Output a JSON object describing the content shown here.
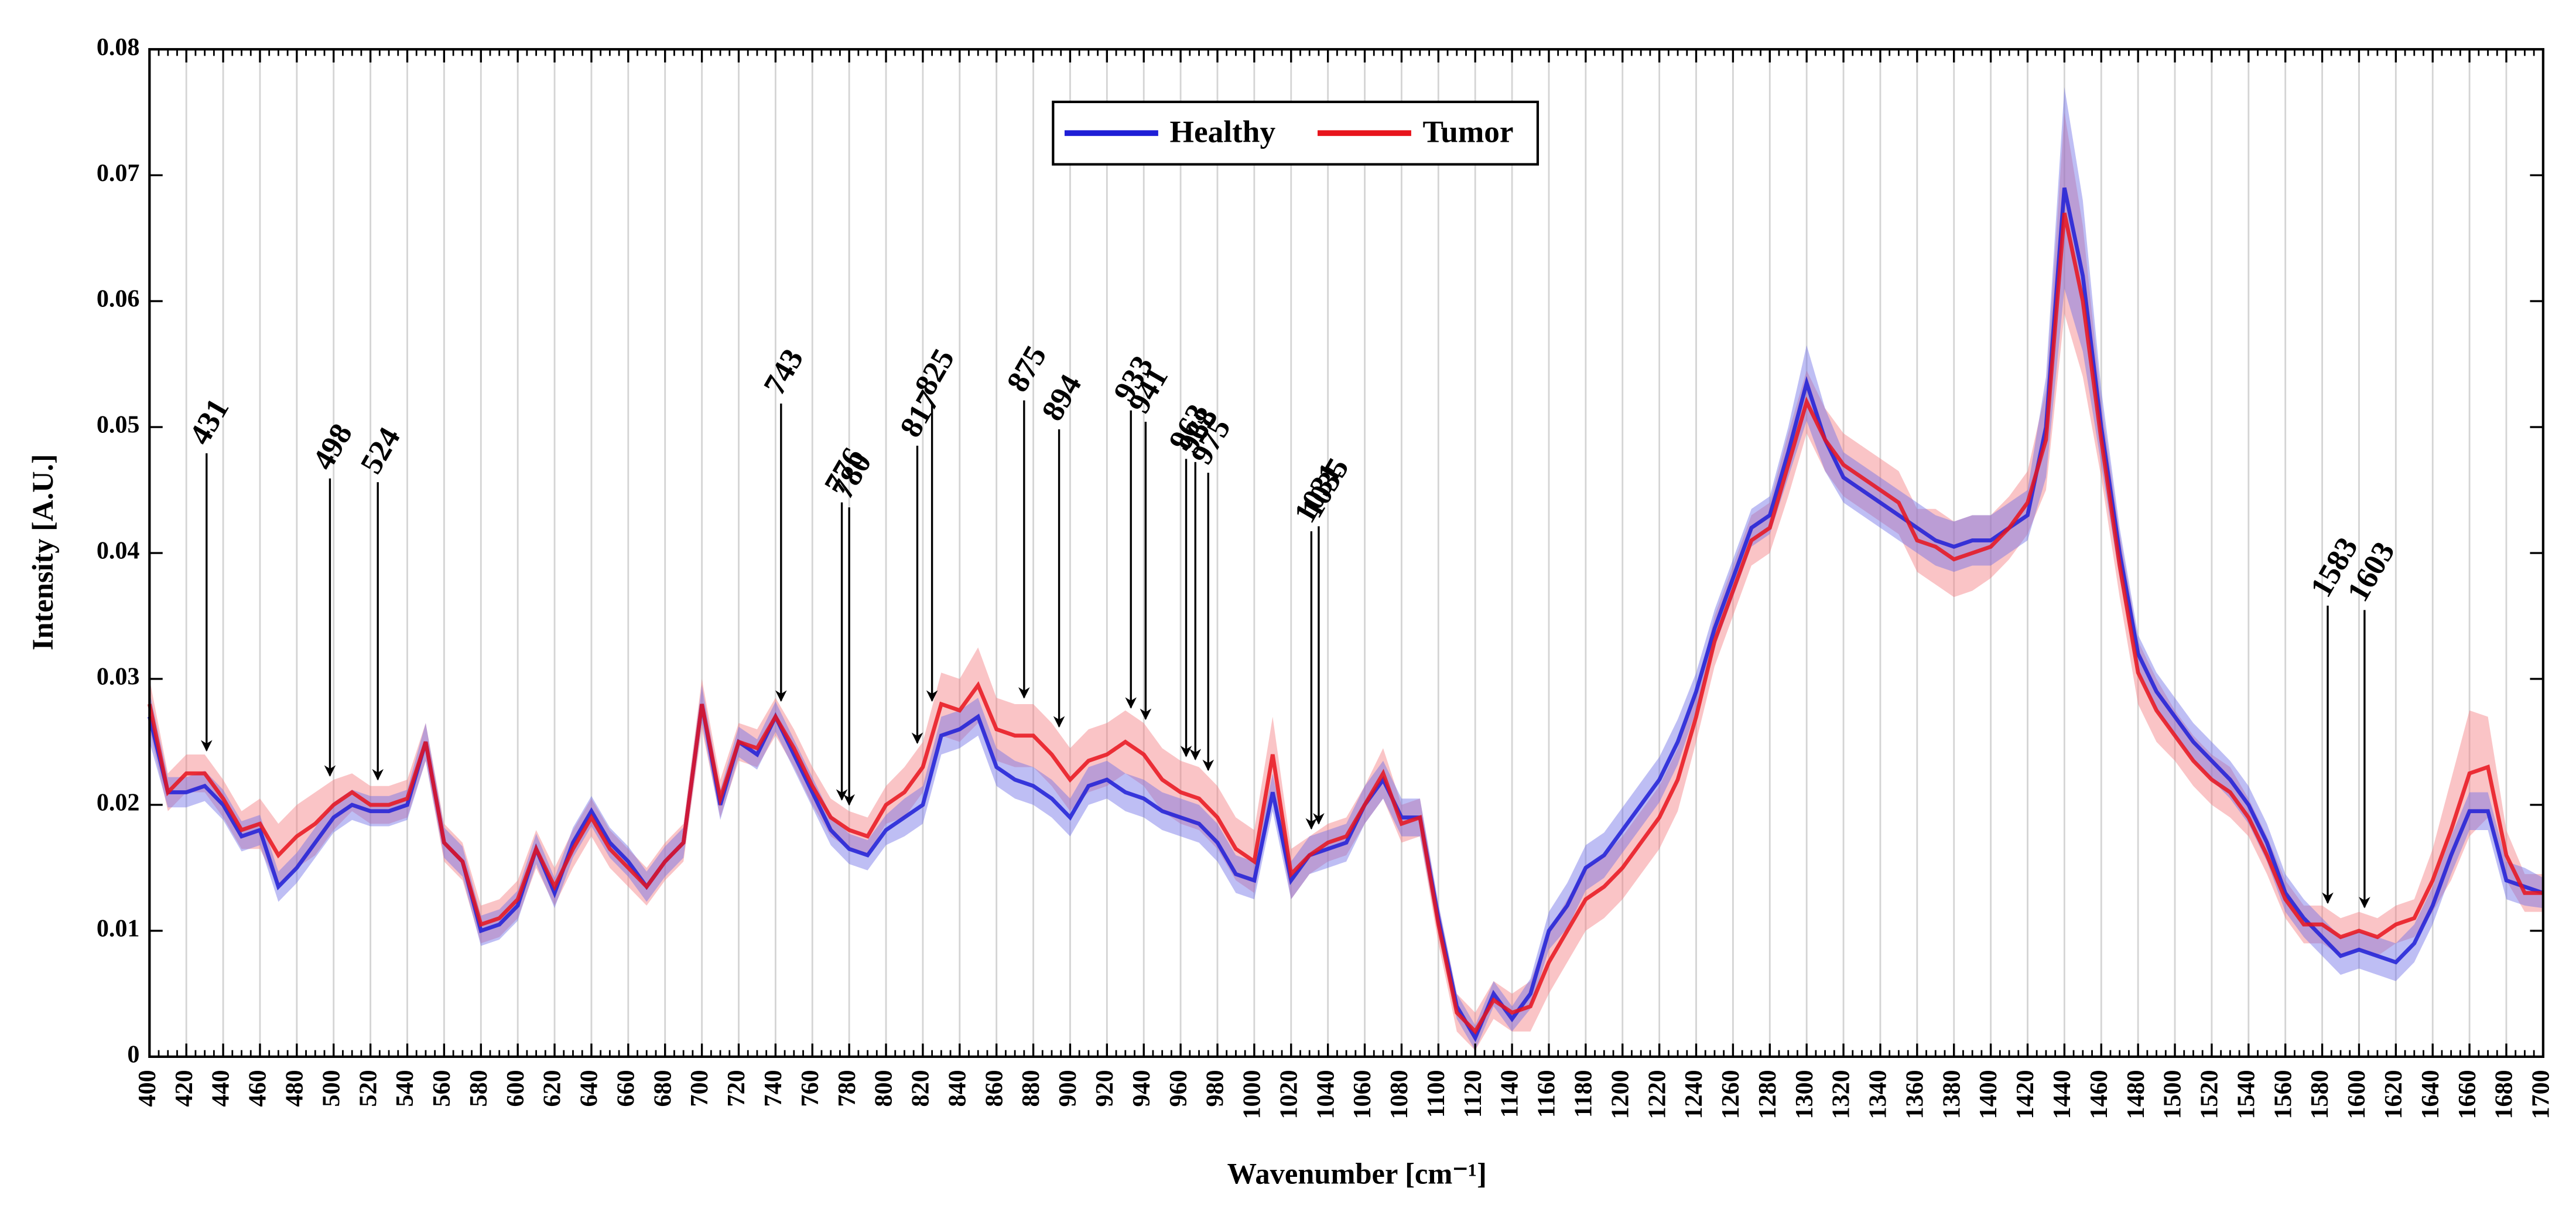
{
  "chart_data": {
    "type": "line",
    "xlabel": "Wavenumber [cm⁻¹]",
    "ylabel": "Intensity [A.U.]",
    "xlim": [
      400,
      1700
    ],
    "ylim": [
      0,
      0.08
    ],
    "xticks": [
      400,
      420,
      440,
      460,
      480,
      500,
      520,
      540,
      560,
      580,
      600,
      620,
      640,
      660,
      680,
      700,
      720,
      740,
      760,
      780,
      800,
      820,
      840,
      860,
      880,
      900,
      920,
      940,
      960,
      980,
      1000,
      1020,
      1040,
      1060,
      1080,
      1100,
      1120,
      1140,
      1160,
      1180,
      1200,
      1220,
      1240,
      1260,
      1280,
      1300,
      1320,
      1340,
      1360,
      1380,
      1400,
      1420,
      1440,
      1460,
      1480,
      1500,
      1520,
      1540,
      1560,
      1580,
      1600,
      1620,
      1640,
      1660,
      1680,
      1700
    ],
    "yticks": [
      0,
      0.01,
      0.02,
      0.03,
      0.04,
      0.05,
      0.06,
      0.07,
      0.08
    ],
    "grid": true,
    "legend": "top",
    "x": [
      400,
      410,
      420,
      430,
      440,
      450,
      460,
      470,
      480,
      490,
      500,
      510,
      520,
      530,
      540,
      550,
      560,
      570,
      580,
      590,
      600,
      610,
      620,
      630,
      640,
      650,
      660,
      670,
      680,
      690,
      700,
      710,
      720,
      730,
      740,
      750,
      760,
      770,
      780,
      790,
      800,
      810,
      820,
      830,
      840,
      850,
      860,
      870,
      880,
      890,
      900,
      910,
      920,
      930,
      940,
      950,
      960,
      970,
      980,
      990,
      1000,
      1010,
      1020,
      1030,
      1040,
      1050,
      1060,
      1070,
      1080,
      1090,
      1100,
      1110,
      1120,
      1130,
      1140,
      1150,
      1160,
      1170,
      1180,
      1190,
      1200,
      1210,
      1220,
      1230,
      1240,
      1250,
      1260,
      1270,
      1280,
      1290,
      1300,
      1310,
      1320,
      1330,
      1340,
      1350,
      1360,
      1370,
      1380,
      1390,
      1400,
      1410,
      1420,
      1430,
      1440,
      1450,
      1460,
      1470,
      1480,
      1490,
      1500,
      1510,
      1520,
      1530,
      1540,
      1550,
      1560,
      1570,
      1580,
      1590,
      1600,
      1610,
      1620,
      1630,
      1640,
      1650,
      1660,
      1670,
      1680,
      1690,
      1700
    ],
    "series": [
      {
        "name": "Healthy",
        "color": "#1f1fd6",
        "band_color": "#6f6fe6",
        "values": [
          0.027,
          0.021,
          0.021,
          0.0215,
          0.02,
          0.0175,
          0.018,
          0.0135,
          0.015,
          0.017,
          0.019,
          0.02,
          0.0195,
          0.0195,
          0.02,
          0.025,
          0.017,
          0.0155,
          0.01,
          0.0105,
          0.012,
          0.0165,
          0.013,
          0.017,
          0.0195,
          0.017,
          0.0155,
          0.0135,
          0.0155,
          0.017,
          0.028,
          0.02,
          0.025,
          0.024,
          0.027,
          0.024,
          0.021,
          0.018,
          0.0165,
          0.016,
          0.018,
          0.019,
          0.02,
          0.0255,
          0.026,
          0.027,
          0.023,
          0.022,
          0.0215,
          0.0205,
          0.019,
          0.0215,
          0.022,
          0.021,
          0.0205,
          0.0195,
          0.019,
          0.0185,
          0.017,
          0.0145,
          0.014,
          0.021,
          0.014,
          0.016,
          0.0165,
          0.017,
          0.02,
          0.022,
          0.019,
          0.019,
          0.011,
          0.004,
          0.0015,
          0.005,
          0.003,
          0.005,
          0.01,
          0.012,
          0.015,
          0.016,
          0.018,
          0.02,
          0.022,
          0.025,
          0.029,
          0.034,
          0.038,
          0.042,
          0.043,
          0.048,
          0.0535,
          0.049,
          0.046,
          0.045,
          0.044,
          0.043,
          0.042,
          0.041,
          0.0405,
          0.041,
          0.041,
          0.042,
          0.043,
          0.05,
          0.069,
          0.062,
          0.05,
          0.04,
          0.032,
          0.029,
          0.027,
          0.025,
          0.0235,
          0.022,
          0.02,
          0.017,
          0.013,
          0.011,
          0.0095,
          0.008,
          0.0085,
          0.008,
          0.0075,
          0.009,
          0.012,
          0.016,
          0.0195,
          0.0195,
          0.014,
          0.0135,
          0.013
        ],
        "spread": [
          0.002,
          0.0012,
          0.0012,
          0.0012,
          0.0012,
          0.0012,
          0.0012,
          0.0012,
          0.0012,
          0.0012,
          0.0012,
          0.0012,
          0.0012,
          0.0012,
          0.0012,
          0.0015,
          0.0012,
          0.0012,
          0.0012,
          0.0012,
          0.0012,
          0.0012,
          0.0012,
          0.0012,
          0.0012,
          0.0012,
          0.0012,
          0.0012,
          0.0012,
          0.0012,
          0.0015,
          0.0012,
          0.0012,
          0.0012,
          0.0012,
          0.0012,
          0.0012,
          0.0012,
          0.0012,
          0.0012,
          0.0012,
          0.0015,
          0.0015,
          0.0015,
          0.0015,
          0.0015,
          0.0015,
          0.0015,
          0.0015,
          0.0015,
          0.0015,
          0.0015,
          0.0015,
          0.0015,
          0.0015,
          0.0015,
          0.0015,
          0.0015,
          0.0015,
          0.0015,
          0.0015,
          0.0015,
          0.0015,
          0.0015,
          0.0015,
          0.0015,
          0.0015,
          0.0015,
          0.0015,
          0.0015,
          0.0012,
          0.001,
          0.001,
          0.001,
          0.001,
          0.0012,
          0.0015,
          0.0018,
          0.0018,
          0.0018,
          0.0018,
          0.0018,
          0.0018,
          0.0018,
          0.0015,
          0.0015,
          0.0015,
          0.0015,
          0.0015,
          0.002,
          0.003,
          0.0025,
          0.002,
          0.002,
          0.002,
          0.002,
          0.002,
          0.002,
          0.002,
          0.002,
          0.002,
          0.002,
          0.002,
          0.004,
          0.008,
          0.006,
          0.003,
          0.002,
          0.0015,
          0.0015,
          0.0015,
          0.0015,
          0.0015,
          0.0015,
          0.0015,
          0.0015,
          0.0015,
          0.0015,
          0.0015,
          0.0015,
          0.0015,
          0.0015,
          0.0015,
          0.0015,
          0.0015,
          0.0015,
          0.0015,
          0.0015,
          0.0015,
          0.0015,
          0.0012
        ]
      },
      {
        "name": "Tumor",
        "color": "#e8141c",
        "band_color": "#f47c80",
        "values": [
          0.028,
          0.021,
          0.0225,
          0.0225,
          0.0205,
          0.018,
          0.0185,
          0.016,
          0.0175,
          0.0185,
          0.02,
          0.021,
          0.02,
          0.02,
          0.0205,
          0.025,
          0.017,
          0.0155,
          0.0105,
          0.011,
          0.0125,
          0.0165,
          0.0135,
          0.0165,
          0.019,
          0.0165,
          0.015,
          0.0135,
          0.0155,
          0.017,
          0.028,
          0.0205,
          0.025,
          0.0245,
          0.027,
          0.0245,
          0.0215,
          0.019,
          0.018,
          0.0175,
          0.02,
          0.021,
          0.023,
          0.028,
          0.0275,
          0.0295,
          0.026,
          0.0255,
          0.0255,
          0.024,
          0.022,
          0.0235,
          0.024,
          0.025,
          0.024,
          0.022,
          0.021,
          0.0205,
          0.019,
          0.0165,
          0.0155,
          0.024,
          0.0145,
          0.016,
          0.017,
          0.0175,
          0.02,
          0.0225,
          0.0185,
          0.019,
          0.0105,
          0.0035,
          0.002,
          0.0045,
          0.0035,
          0.004,
          0.0075,
          0.01,
          0.0125,
          0.0135,
          0.015,
          0.017,
          0.019,
          0.022,
          0.027,
          0.033,
          0.037,
          0.041,
          0.042,
          0.047,
          0.052,
          0.049,
          0.047,
          0.046,
          0.045,
          0.044,
          0.041,
          0.0405,
          0.0395,
          0.04,
          0.0405,
          0.042,
          0.044,
          0.049,
          0.067,
          0.06,
          0.049,
          0.039,
          0.0305,
          0.0275,
          0.0255,
          0.0235,
          0.022,
          0.021,
          0.019,
          0.016,
          0.0125,
          0.0105,
          0.0105,
          0.0095,
          0.01,
          0.0095,
          0.0105,
          0.011,
          0.014,
          0.018,
          0.0225,
          0.023,
          0.016,
          0.013,
          0.013
        ],
        "spread": [
          0.002,
          0.0015,
          0.0015,
          0.0015,
          0.0015,
          0.0015,
          0.002,
          0.0025,
          0.0025,
          0.0025,
          0.002,
          0.0015,
          0.0015,
          0.0015,
          0.0015,
          0.0015,
          0.0015,
          0.0015,
          0.0015,
          0.0015,
          0.0015,
          0.0015,
          0.0015,
          0.0015,
          0.0015,
          0.0015,
          0.0015,
          0.0015,
          0.0015,
          0.0015,
          0.002,
          0.0015,
          0.0015,
          0.0015,
          0.0015,
          0.0015,
          0.0015,
          0.0015,
          0.0015,
          0.0015,
          0.0015,
          0.002,
          0.002,
          0.0025,
          0.0025,
          0.003,
          0.0025,
          0.0025,
          0.0025,
          0.0025,
          0.0025,
          0.0025,
          0.0025,
          0.0025,
          0.0025,
          0.0025,
          0.0025,
          0.0025,
          0.0025,
          0.0025,
          0.0025,
          0.003,
          0.002,
          0.0015,
          0.0015,
          0.0015,
          0.0015,
          0.002,
          0.0015,
          0.0015,
          0.0015,
          0.0015,
          0.0015,
          0.0015,
          0.0015,
          0.002,
          0.0025,
          0.0025,
          0.0025,
          0.0025,
          0.0025,
          0.0025,
          0.0025,
          0.0025,
          0.002,
          0.002,
          0.002,
          0.002,
          0.002,
          0.0025,
          0.0025,
          0.0025,
          0.0025,
          0.0025,
          0.0025,
          0.0025,
          0.0025,
          0.003,
          0.003,
          0.003,
          0.0025,
          0.0025,
          0.0025,
          0.004,
          0.008,
          0.006,
          0.003,
          0.0025,
          0.0025,
          0.0025,
          0.002,
          0.002,
          0.002,
          0.002,
          0.0015,
          0.0015,
          0.0015,
          0.0015,
          0.0015,
          0.0015,
          0.0015,
          0.0015,
          0.0015,
          0.0015,
          0.0025,
          0.004,
          0.005,
          0.004,
          0.002,
          0.0015,
          0.0015
        ]
      }
    ],
    "annotations": [
      431,
      498,
      524,
      743,
      776,
      780,
      817,
      825,
      875,
      894,
      933,
      941,
      963,
      968,
      975,
      1031,
      1035,
      1583,
      1603
    ]
  }
}
